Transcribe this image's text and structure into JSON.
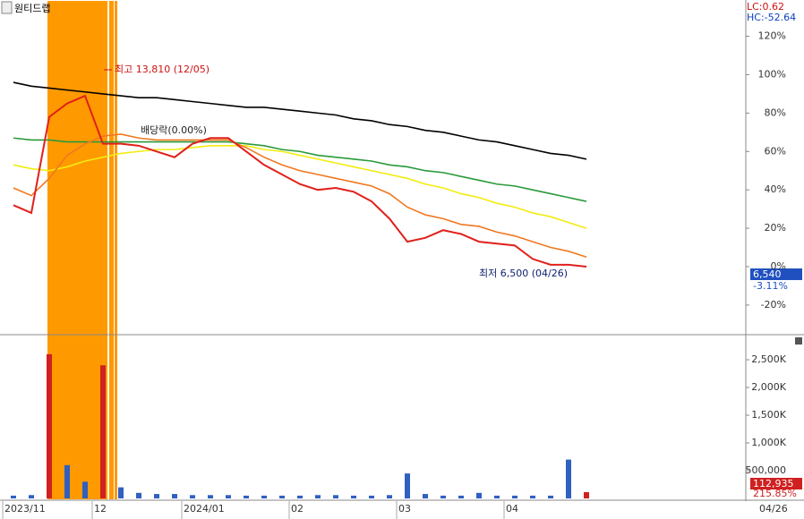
{
  "chart_data": [
    {
      "type": "line",
      "title": "원티드랩",
      "lc_label": "LC:0.62",
      "hc_label": "HC:-52.64",
      "annotations": [
        "최고 13,810 (12/05)",
        "배당락(0.00%)",
        "최저 6,500 (04/26)"
      ],
      "current_price": {
        "value": 6540,
        "label": "6,540"
      },
      "change": {
        "value": -3.11,
        "label": "-3.11%"
      },
      "categories": [
        "2023/11",
        null,
        null,
        null,
        null,
        "12",
        null,
        null,
        null,
        null,
        "2024/01",
        null,
        null,
        null,
        null,
        null,
        "02",
        null,
        null,
        null,
        null,
        null,
        "03",
        null,
        null,
        null,
        null,
        null,
        "04",
        null,
        null,
        null,
        null
      ],
      "end_label": "04/26",
      "series": [
        {
          "color": "#000000",
          "values": [
            96,
            94,
            93,
            92,
            91,
            90,
            89,
            88,
            88,
            87,
            86,
            85,
            84,
            83,
            83,
            82,
            81,
            80,
            79,
            77,
            76,
            74,
            73,
            71,
            70,
            68,
            66,
            65,
            63,
            61,
            59,
            58,
            56
          ]
        },
        {
          "color": "#2a9a3a",
          "values": [
            67,
            66,
            66,
            65,
            65,
            65,
            65,
            65,
            65,
            65,
            65,
            65,
            65,
            64,
            63,
            61,
            60,
            58,
            57,
            56,
            55,
            53,
            52,
            50,
            49,
            47,
            45,
            43,
            42,
            40,
            38,
            36,
            34
          ]
        },
        {
          "color": "#f2ec10",
          "values": [
            53,
            51,
            50,
            52,
            55,
            57,
            59,
            60,
            61,
            61,
            62,
            63,
            63,
            63,
            61,
            60,
            58,
            56,
            54,
            52,
            50,
            48,
            46,
            43,
            41,
            38,
            36,
            33,
            31,
            28,
            26,
            23,
            20
          ]
        },
        {
          "color": "#f07820",
          "values": [
            41,
            37,
            46,
            58,
            64,
            68,
            69,
            67,
            66,
            66,
            66,
            66,
            66,
            62,
            57,
            53,
            50,
            48,
            46,
            44,
            42,
            38,
            31,
            27,
            25,
            22,
            21,
            18,
            16,
            13,
            10,
            8,
            5
          ]
        },
        {
          "color": "#e0201b",
          "values": [
            32,
            28,
            78,
            85,
            89,
            64,
            64,
            63,
            60,
            57,
            64,
            67,
            67,
            60,
            53,
            48,
            43,
            40,
            41,
            39,
            34,
            25,
            13,
            15,
            19,
            17,
            13,
            12,
            11,
            4,
            1,
            1,
            0
          ]
        }
      ],
      "ylim": [
        -34.5,
        138.9
      ],
      "yticks": [
        {
          "value": -20,
          "label": "-20%"
        },
        {
          "value": 0,
          "label": "0%"
        },
        {
          "value": 20,
          "label": "20%"
        },
        {
          "value": 40,
          "label": "40%"
        },
        {
          "value": 60,
          "label": "60%"
        },
        {
          "value": 80,
          "label": "80%"
        },
        {
          "value": 100,
          "label": "100%"
        },
        {
          "value": 120,
          "label": "120%"
        }
      ]
    },
    {
      "type": "bar",
      "color": "#3060c0",
      "values": [
        50000,
        60000,
        2600000,
        600000,
        300000,
        2400000,
        200000,
        100000,
        80000,
        80000,
        60000,
        60000,
        60000,
        50000,
        50000,
        50000,
        50000,
        60000,
        60000,
        50000,
        50000,
        60000,
        450000,
        80000,
        50000,
        50000,
        100000,
        50000,
        50000,
        50000,
        50000,
        700000,
        112935
      ],
      "value_labels": [
        null,
        null,
        null,
        null,
        null,
        null,
        null,
        null,
        null,
        null,
        null,
        null,
        null,
        null,
        null,
        null,
        null,
        null,
        null,
        null,
        null,
        null,
        null,
        null,
        null,
        null,
        null,
        null,
        null,
        null,
        null,
        null,
        "112,935"
      ],
      "ratio": {
        "value": 215.85,
        "label": "215.85%"
      },
      "ylim": [
        0,
        2920000
      ],
      "yticks": [
        {
          "value": 500000,
          "label": "500,000"
        },
        {
          "value": 1000000,
          "label": "1,000K"
        },
        {
          "value": 1500000,
          "label": "1,500K"
        },
        {
          "value": 2000000,
          "label": "2,000K"
        },
        {
          "value": 2500000,
          "label": "2,500K"
        }
      ]
    }
  ]
}
